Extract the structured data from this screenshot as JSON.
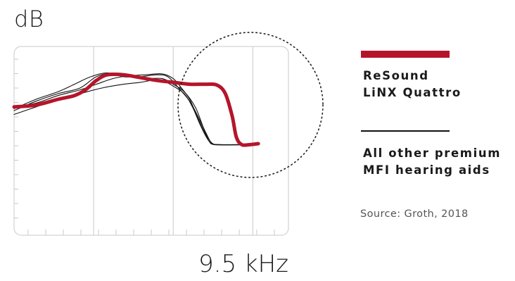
{
  "chart_data": {
    "type": "line",
    "ylabel": "dB",
    "x_annotation": "9.5 kHz",
    "grid": true,
    "legend_placement": "right",
    "highlight_annotation": "dotted circle around the high-frequency roll-off",
    "x_domain": [
      0,
      100
    ],
    "y_domain": [
      0,
      100
    ],
    "series": [
      {
        "name": "ReSound LiNX Quattro",
        "label_lines": [
          "ReSound",
          "LiNX Quattro"
        ],
        "color": "#b5152b",
        "width": "thick",
        "points": [
          [
            0,
            68
          ],
          [
            8,
            69
          ],
          [
            16,
            72
          ],
          [
            22,
            74
          ],
          [
            26,
            77
          ],
          [
            30,
            82
          ],
          [
            34,
            85
          ],
          [
            40,
            85
          ],
          [
            46,
            83.5
          ],
          [
            52,
            82
          ],
          [
            58,
            81
          ],
          [
            64,
            80
          ],
          [
            70,
            80
          ],
          [
            74,
            79.5
          ],
          [
            77,
            75
          ],
          [
            79.5,
            63
          ],
          [
            81,
            52
          ],
          [
            83,
            48
          ],
          [
            86,
            48
          ],
          [
            89,
            48.5
          ]
        ]
      },
      {
        "name": "All other premium MFI hearing aids",
        "label_lines": [
          "All other premium",
          "MFI hearing aids"
        ],
        "color": "#111111",
        "width": "thin",
        "curves": [
          [
            [
              0,
              66
            ],
            [
              8,
              71
            ],
            [
              16,
              75
            ],
            [
              24,
              78
            ],
            [
              30,
              84
            ],
            [
              36,
              86
            ],
            [
              42,
              84
            ],
            [
              48,
              83
            ],
            [
              54,
              83
            ],
            [
              58,
              80
            ],
            [
              62,
              76
            ],
            [
              66,
              68
            ],
            [
              69,
              57
            ],
            [
              71,
              50
            ],
            [
              73,
              48
            ],
            [
              80,
              48
            ],
            [
              87,
              48
            ]
          ],
          [
            [
              0,
              67
            ],
            [
              8,
              72
            ],
            [
              16,
              76
            ],
            [
              22,
              80
            ],
            [
              28,
              84
            ],
            [
              34,
              86
            ],
            [
              40,
              84
            ],
            [
              46,
              84
            ],
            [
              52,
              85
            ],
            [
              56,
              84
            ],
            [
              60,
              78
            ],
            [
              64,
              71
            ],
            [
              67,
              63
            ],
            [
              70,
              54
            ],
            [
              72,
              49
            ],
            [
              75,
              48
            ],
            [
              87,
              48
            ]
          ],
          [
            [
              0,
              68
            ],
            [
              8,
              70
            ],
            [
              16,
              74
            ],
            [
              24,
              77
            ],
            [
              30,
              80
            ],
            [
              36,
              83
            ],
            [
              42,
              84.5
            ],
            [
              48,
              85
            ],
            [
              54,
              85.5
            ],
            [
              58,
              83
            ],
            [
              61,
              78
            ],
            [
              64,
              72
            ],
            [
              67,
              62
            ],
            [
              70,
              53
            ],
            [
              72,
              48.5
            ],
            [
              76,
              48
            ],
            [
              87,
              48
            ]
          ],
          [
            [
              0,
              64
            ],
            [
              8,
              68
            ],
            [
              16,
              72
            ],
            [
              24,
              75
            ],
            [
              32,
              78
            ],
            [
              40,
              80
            ],
            [
              46,
              81
            ],
            [
              50,
              82
            ],
            [
              54,
              82
            ],
            [
              58,
              79
            ],
            [
              62,
              75
            ],
            [
              65,
              68
            ],
            [
              68,
              58
            ],
            [
              71,
              50
            ],
            [
              74,
              48
            ],
            [
              87,
              48
            ]
          ]
        ]
      }
    ],
    "source": "Source: Groth, 2018"
  }
}
